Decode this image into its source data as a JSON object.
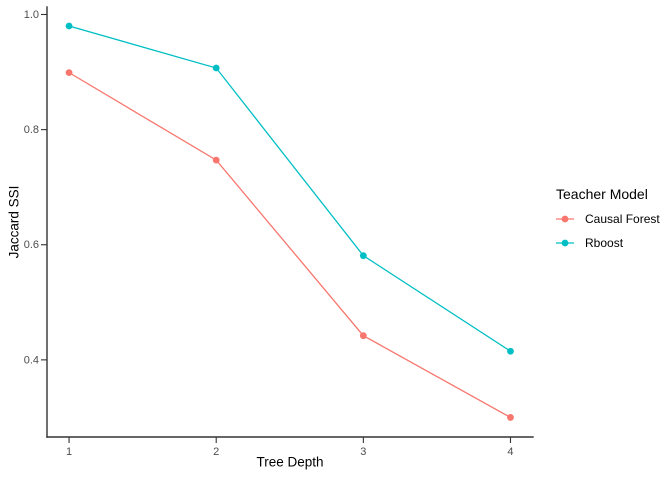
{
  "chart_data": {
    "type": "line",
    "title": "",
    "xlabel": "Tree Depth",
    "ylabel": "Jaccard SSI",
    "x": [
      1,
      2,
      3,
      4
    ],
    "series": [
      {
        "name": "Causal Forest",
        "color": "#F8766D",
        "values": [
          0.899,
          0.747,
          0.442,
          0.3
        ]
      },
      {
        "name": "Rboost",
        "color": "#00BFC4",
        "values": [
          0.98,
          0.907,
          0.581,
          0.415
        ]
      }
    ],
    "xticks": [
      1,
      2,
      3,
      4
    ],
    "xtick_labels": [
      "1",
      "2",
      "3",
      "4"
    ],
    "yticks": [
      0.4,
      0.6,
      0.8,
      1.0
    ],
    "ytick_labels": [
      "0.4",
      "0.6",
      "0.8",
      "1.0"
    ],
    "xlim": [
      0.85,
      4.153
    ],
    "ylim": [
      0.266,
      1.013
    ],
    "grid": false,
    "legend": {
      "title": "Teacher Model",
      "position": "right"
    },
    "point_radius": 3.4,
    "line_width": 1.3
  }
}
